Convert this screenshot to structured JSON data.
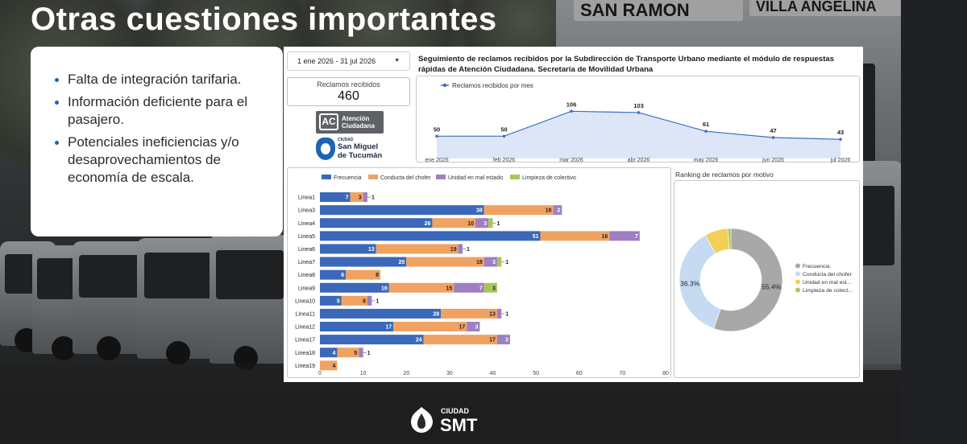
{
  "slide": {
    "title": "Otras cuestiones importantes",
    "bullets": [
      "Falta de integración tarifaria.",
      "Información deficiente para el pasajero.",
      "Potenciales ineficiencias y/o desaprovechamientos de economía de escala."
    ],
    "bg_signs": [
      "SAN RAMON",
      "VILLA ANGELINA"
    ],
    "footer_logo": {
      "ciudad": "CIUDAD",
      "smt": "SMT"
    }
  },
  "dashboard": {
    "date_range": "1 ene 2026 - 31 jul 2026",
    "title": "Seguimiento de reclamos recibidos por la Subdirección de Transporte Urbano mediante el módulo de respuestas rápidas de Atención Ciudadana. Secretaría de Movilidad Urbana",
    "kpi": {
      "label": "Reclamos recibidos",
      "value": "460"
    },
    "logos": {
      "ac_badge": "AC",
      "ac_line1": "Atención",
      "ac_line2": "Ciudadana",
      "smt_ciudad": "CIUDAD",
      "smt_line1": "San Miguel",
      "smt_line2": "de Tucumán"
    },
    "ranking_title": "Ranking de reclamos por motivo"
  },
  "colors": {
    "blue": "#3b68b8",
    "orange": "#f0a263",
    "purple": "#9d7fc2",
    "green": "#a6c75a",
    "line": "#3b6fc4",
    "pie_gray": "#a8a8a8",
    "pie_light_blue": "#c6dbf2",
    "pie_yellow": "#f3cf56",
    "pie_green": "#a6c75a"
  },
  "chart_data": [
    {
      "type": "line",
      "legend": "Reclamos recibidos por mes",
      "x": [
        "ene 2026",
        "feb 2026",
        "mar 2026",
        "abr 2026",
        "may 2026",
        "jun 2026",
        "jul 2026"
      ],
      "series": [
        {
          "name": "Reclamos recibidos por mes",
          "values": [
            50,
            50,
            106,
            103,
            61,
            47,
            43
          ]
        }
      ]
    },
    {
      "type": "bar",
      "orientation": "horizontal-stacked",
      "categories": [
        "Linea1",
        "Linea3",
        "Linea4",
        "Linea5",
        "Linea6",
        "Linea7",
        "Linea8",
        "Linea9",
        "Linea10",
        "Linea11",
        "Linea12",
        "Linea17",
        "Linea18",
        "Linea19"
      ],
      "series": [
        {
          "name": "Frecuencia",
          "values": [
            7,
            38,
            26,
            51,
            13,
            20,
            6,
            16,
            5,
            28,
            17,
            24,
            4,
            0
          ]
        },
        {
          "name": "Conducta del chofer",
          "values": [
            3,
            16,
            10,
            16,
            19,
            18,
            8,
            15,
            6,
            13,
            17,
            17,
            5,
            4
          ]
        },
        {
          "name": "Unidad en mal estado",
          "values": [
            1,
            2,
            3,
            7,
            1,
            3,
            0,
            7,
            1,
            1,
            3,
            3,
            1,
            0
          ]
        },
        {
          "name": "Limpieza de colectivo",
          "values": [
            0,
            0,
            1,
            0,
            0,
            1,
            0,
            3,
            0,
            0,
            0,
            0,
            0,
            0
          ]
        }
      ],
      "xlim": [
        0,
        80
      ],
      "xticks": [
        "0",
        "10",
        "20",
        "30",
        "40",
        "50",
        "60",
        "70",
        "80"
      ],
      "legend_position": "top"
    },
    {
      "type": "pie",
      "style": "donut",
      "labels": [
        "Frecuencia",
        "Conducta del chofer",
        "Unidad en mal estado",
        "Limpieza de colectivo"
      ],
      "legend_labels": [
        "Frecuencia",
        "Conducta del chofer",
        "Unidad en mal est...",
        "Limpieza de colect..."
      ],
      "values": [
        55.4,
        36.3,
        7.4,
        0.9
      ],
      "data_labels": [
        "55.4%",
        "36.3%",
        "",
        ""
      ],
      "legend_position": "right"
    }
  ]
}
